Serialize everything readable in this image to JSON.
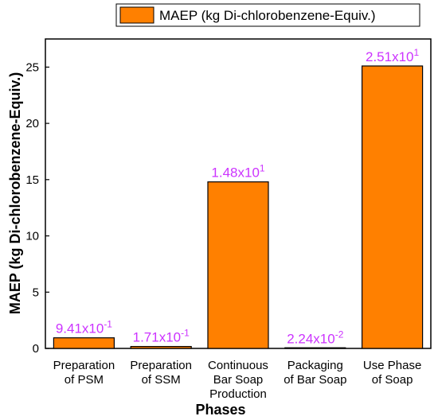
{
  "chart_data": {
    "type": "bar",
    "title": "",
    "xlabel": "Phases",
    "ylabel": "MAEP (kg Di-chlorobenzene-Equiv.)",
    "categories": [
      [
        "Preparation",
        "of PSM"
      ],
      [
        "Preparation",
        "of SSM"
      ],
      [
        "Continuous",
        "Bar Soap",
        "Production"
      ],
      [
        "Packaging",
        "of Bar Soap"
      ],
      [
        "Use Phase",
        "of Soap"
      ]
    ],
    "series": [
      {
        "name": "MAEP (kg Di-chlorobenzene-Equiv.)",
        "values": [
          0.941,
          0.171,
          14.8,
          0.0224,
          25.1
        ],
        "color": "#FF8000"
      }
    ],
    "data_labels": [
      {
        "mantissa": "9.41x10",
        "exponent": "-1"
      },
      {
        "mantissa": "1.71x10",
        "exponent": "-1"
      },
      {
        "mantissa": "1.48x10",
        "exponent": "1"
      },
      {
        "mantissa": "2.24x10",
        "exponent": "-2"
      },
      {
        "mantissa": "2.51x10",
        "exponent": "1"
      }
    ],
    "data_label_color": "#CC33FF",
    "ylim": [
      0,
      27.5
    ],
    "yticks": [
      0,
      5,
      10,
      15,
      20,
      25
    ],
    "grid": false,
    "legend_position": "top"
  }
}
